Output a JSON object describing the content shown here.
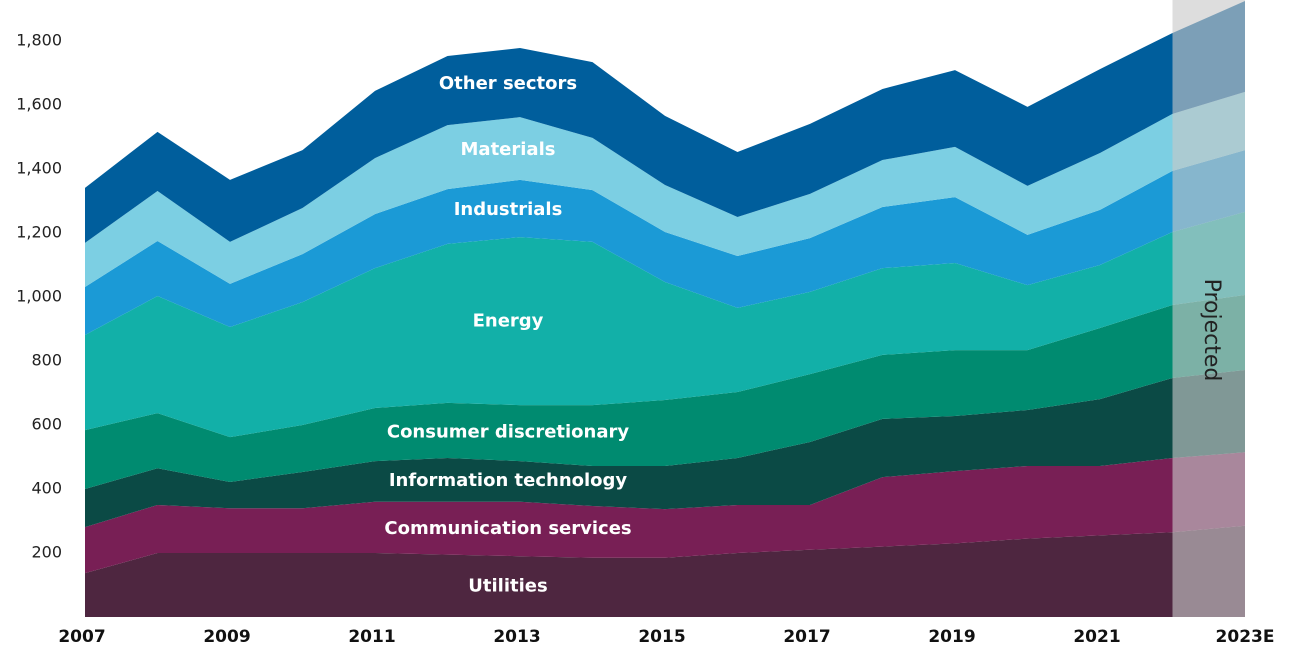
{
  "chart_data": {
    "type": "stacked_area",
    "categories": [
      "2007",
      null,
      "2009",
      null,
      "2011",
      null,
      "2013",
      null,
      "2015",
      null,
      "2017",
      null,
      "2019",
      null,
      "2021",
      null,
      "2023E"
    ],
    "series": [
      {
        "name": "Utilities",
        "color": "#4e2640",
        "values": [
          137,
          200,
          200,
          200,
          200,
          195,
          190,
          185,
          185,
          200,
          210,
          220,
          230,
          245,
          255,
          265,
          285
        ]
      },
      {
        "name": "Communication services",
        "color": "#781f55",
        "values": [
          144,
          150,
          140,
          140,
          160,
          165,
          170,
          162,
          152,
          150,
          140,
          217,
          226,
          227,
          217,
          232,
          230
        ]
      },
      {
        "name": "Information technology",
        "color": "#0b4a45",
        "values": [
          119,
          115,
          82,
          113,
          127,
          137,
          127,
          125,
          135,
          147,
          197,
          182,
          172,
          175,
          209,
          250,
          257
        ]
      },
      {
        "name": "Consumer discretionary",
        "color": "#008b70",
        "values": [
          184,
          172,
          140,
          147,
          166,
          172,
          175,
          190,
          206,
          206,
          212,
          200,
          206,
          187,
          222,
          228,
          234
        ]
      },
      {
        "name": "Energy",
        "color": "#12b0a8",
        "values": [
          297,
          366,
          344,
          384,
          437,
          497,
          525,
          510,
          369,
          263,
          257,
          271,
          272,
          203,
          197,
          228,
          260
        ]
      },
      {
        "name": "Industrials",
        "color": "#1b9ad6",
        "values": [
          150,
          172,
          135,
          150,
          169,
          171,
          179,
          162,
          156,
          162,
          168,
          191,
          206,
          157,
          172,
          191,
          193
        ]
      },
      {
        "name": "Materials",
        "color": "#7ccfe3",
        "values": [
          138,
          156,
          131,
          144,
          175,
          200,
          196,
          163,
          147,
          122,
          138,
          147,
          157,
          153,
          178,
          178,
          182
        ]
      },
      {
        "name": "Other sectors",
        "color": "#005e9c",
        "values": [
          172,
          185,
          194,
          181,
          210,
          216,
          216,
          237,
          216,
          203,
          219,
          222,
          240,
          247,
          262,
          253,
          284
        ]
      }
    ],
    "ylim": [
      0,
      1928
    ],
    "yticks": [
      200,
      400,
      600,
      800,
      {
        "value": 1000,
        "label": "1,000"
      },
      {
        "value": 1200,
        "label": "1,200"
      },
      {
        "value": 1400,
        "label": "1,400"
      },
      {
        "value": 1600,
        "label": "1,600"
      },
      {
        "value": 1800,
        "label": "1,800"
      }
    ],
    "annotation": "Projected"
  }
}
